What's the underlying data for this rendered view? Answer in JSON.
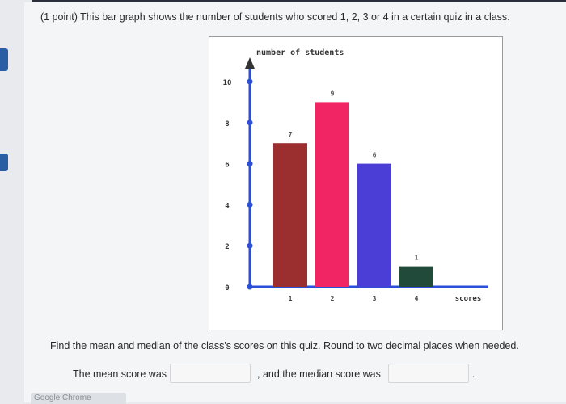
{
  "question": {
    "points": "(1 point)",
    "text": "This bar graph shows the number of students who scored 1, 2, 3 or 4 in a certain quiz in a class."
  },
  "prompt": "Find the mean and median of the class's scores on this quiz. Round to two decimal places when needed.",
  "answers": {
    "mean_label": "The mean score was",
    "median_label": ", and the median score was",
    "end": ".",
    "mean_value": "",
    "median_value": ""
  },
  "footer": {
    "app_label": "Google Chrome"
  },
  "chart_data": {
    "type": "bar",
    "categories": [
      "1",
      "2",
      "3",
      "4"
    ],
    "values": [
      7,
      9,
      6,
      1
    ],
    "data_labels": [
      "7",
      "9",
      "6",
      "1"
    ],
    "bar_colors": [
      "#9b2f2f",
      "#f22564",
      "#4a3ed6",
      "#214a3a"
    ],
    "ylabel": "number of students",
    "xlabel": "scores",
    "yticks": [
      0,
      2,
      4,
      6,
      8,
      10
    ],
    "ytick_labels": [
      "0",
      "2",
      "4",
      "6",
      "8",
      "10"
    ],
    "ylim": [
      0,
      10
    ],
    "axis_color": "#2b4fd8"
  }
}
